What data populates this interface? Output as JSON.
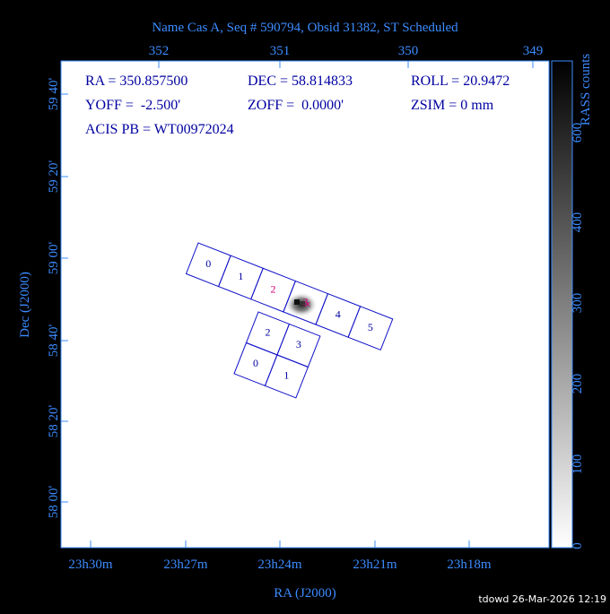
{
  "header": {
    "title": "Name Cas A, Seq # 590794, Obsid 31382, ST Scheduled"
  },
  "axes": {
    "top_labels": [
      "352",
      "351",
      "350",
      "349"
    ],
    "bottom_labels": [
      "23h30m",
      "23h27m",
      "23h24m",
      "23h21m",
      "23h18m"
    ],
    "left_labels": [
      "59 40'",
      "59 20'",
      "59 00'",
      "58 40'",
      "58 20'",
      "58 00'"
    ],
    "x_title": "RA (J2000)",
    "y_title": "Dec (J2000)"
  },
  "colorbar": {
    "title": "RASS counts",
    "labels": [
      "0",
      "100",
      "200",
      "300",
      "400",
      "600"
    ]
  },
  "info": [
    [
      "RA = 350.857500",
      "DEC = 58.814833",
      "ROLL = 20.9472"
    ],
    [
      "YOFF =  -2.500'",
      "ZOFF =  0.0000'",
      "ZSIM = 0 mm"
    ],
    [
      "ACIS PB = WT00972024"
    ]
  ],
  "chips": {
    "s_array": [
      "0",
      "1",
      "2",
      "3",
      "4",
      "5"
    ],
    "i_array": [
      "2",
      "3",
      "0",
      "1"
    ]
  },
  "footer": "tdowd 26-Mar-2026 12:19"
}
